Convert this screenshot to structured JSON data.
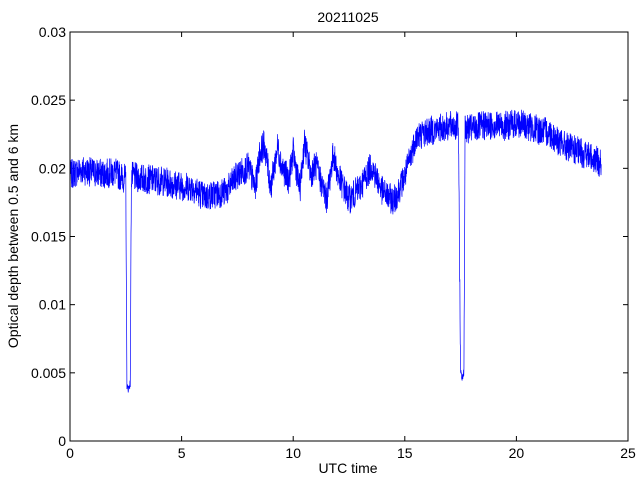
{
  "chart_data": {
    "type": "line",
    "title": "20211025",
    "xlabel": "UTC time",
    "ylabel": "Optical depth between 0.5 and 6 km",
    "xlim": [
      0,
      25
    ],
    "ylim": [
      0,
      0.03
    ],
    "grid": false,
    "legend": "none",
    "xticks": [
      "0",
      "5",
      "10",
      "15",
      "20",
      "25"
    ],
    "yticks": [
      "0",
      "0.005",
      "0.01",
      "0.015",
      "0.02",
      "0.025",
      "0.03"
    ],
    "line_color": "#0000ff",
    "series": [
      {
        "x": [
          0,
          0.5,
          1,
          1.5,
          2,
          2.5,
          2.55,
          2.6,
          2.7,
          2.75,
          2.8,
          3,
          3.5,
          4,
          4.5,
          5,
          5.5,
          6,
          6.5,
          7,
          7.5,
          8,
          8.3,
          8.5,
          8.7,
          9,
          9.3,
          9.5,
          9.8,
          10,
          10.3,
          10.5,
          10.8,
          11,
          11.5,
          11.8,
          12,
          12.5,
          13,
          13.5,
          14,
          14.5,
          15,
          15.5,
          16,
          16.5,
          17,
          17.4,
          17.5,
          17.55,
          17.65,
          17.7,
          18,
          18.5,
          19,
          19.5,
          20,
          20.5,
          21,
          21.5,
          22,
          22.5,
          23,
          23.5,
          23.8
        ],
        "y": [
          0.0195,
          0.0199,
          0.0197,
          0.0196,
          0.0197,
          0.0192,
          0.0041,
          0.0038,
          0.0042,
          0.0195,
          0.0194,
          0.0193,
          0.0192,
          0.0191,
          0.0189,
          0.0187,
          0.0186,
          0.0179,
          0.0181,
          0.0183,
          0.0195,
          0.0201,
          0.0185,
          0.0211,
          0.0218,
          0.0186,
          0.0216,
          0.0201,
          0.0191,
          0.0212,
          0.0184,
          0.0219,
          0.0196,
          0.0203,
          0.0177,
          0.0211,
          0.0195,
          0.0177,
          0.0186,
          0.0202,
          0.0183,
          0.0176,
          0.0194,
          0.0223,
          0.0227,
          0.0229,
          0.0231,
          0.0231,
          0.0052,
          0.0046,
          0.0051,
          0.0228,
          0.0229,
          0.0231,
          0.0232,
          0.0231,
          0.0233,
          0.0231,
          0.0228,
          0.0226,
          0.0218,
          0.0214,
          0.0211,
          0.0207,
          0.0203
        ]
      }
    ]
  }
}
